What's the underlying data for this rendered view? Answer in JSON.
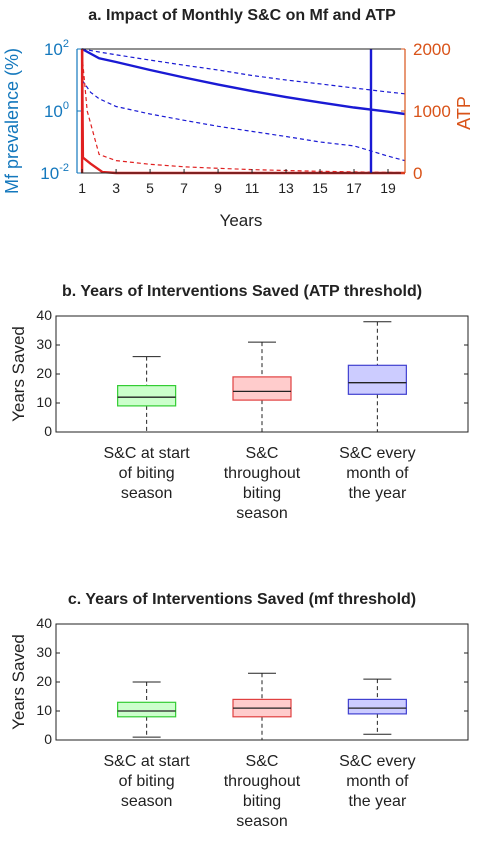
{
  "chart_data": [
    {
      "type": "line",
      "title": "a. Impact of Monthly S&C on Mf and ATP",
      "xlabel": "Years",
      "ylabel_left": "Mf prevalence (%)",
      "ylabel_right": "ATP",
      "xlim": [
        0.7,
        20
      ],
      "xticks": [
        1,
        3,
        5,
        7,
        9,
        11,
        13,
        15,
        17,
        19
      ],
      "xtick_labels": [
        "1",
        "3",
        "5",
        "7",
        "9",
        "11",
        "13",
        "15",
        "17",
        "19"
      ],
      "yscale_left": "log",
      "ylim_left": [
        0.01,
        100
      ],
      "yticks_left": [
        0.01,
        1,
        100
      ],
      "ytick_labels_left": [
        "10",
        "10",
        "10"
      ],
      "ytick_exponents_left": [
        "-2",
        "0",
        "2"
      ],
      "ylim_right": [
        0,
        2000
      ],
      "yticks_right": [
        0,
        1000,
        2000
      ],
      "ytick_labels_right": [
        "0",
        "1000",
        "2000"
      ],
      "colors": {
        "left_axis": "#1478bd",
        "right_axis": "#d95319",
        "mf": "#1a1ad4",
        "atp": "#e02020"
      },
      "series": [
        {
          "axis": "left",
          "style": "solid",
          "color": "#1a1ad4",
          "x": [
            1,
            2,
            3,
            5,
            7,
            9,
            11,
            13,
            15,
            17,
            19,
            20
          ],
          "y": [
            100,
            50,
            38,
            21,
            12,
            7.1,
            4.4,
            2.8,
            1.9,
            1.3,
            0.95,
            0.8
          ]
        },
        {
          "axis": "left",
          "style": "dashed",
          "color": "#1a1ad4",
          "x": [
            1,
            2,
            3,
            5,
            7,
            9,
            11,
            13,
            15,
            17,
            19,
            20
          ],
          "y": [
            100,
            80,
            65,
            44,
            30,
            21,
            14,
            10,
            7.5,
            5.5,
            4.1,
            3.6
          ]
        },
        {
          "axis": "left",
          "style": "dashed",
          "color": "#1a1ad4",
          "x": [
            1,
            1.5,
            2,
            3,
            5,
            7,
            9,
            11,
            13,
            15,
            17,
            19,
            20
          ],
          "y": [
            10,
            4,
            2.5,
            1.4,
            0.8,
            0.5,
            0.32,
            0.22,
            0.15,
            0.1,
            0.075,
            0.035,
            0.025
          ]
        },
        {
          "axis": "right",
          "style": "solid",
          "color": "#e02020",
          "x": [
            1,
            1.05,
            1.5,
            2.2,
            3,
            20
          ],
          "y": [
            2000,
            250,
            150,
            15,
            0,
            0
          ]
        },
        {
          "axis": "right",
          "style": "dashed",
          "color": "#e02020",
          "x": [
            1,
            1.3,
            2,
            3,
            5,
            7,
            9,
            11,
            13,
            15,
            17,
            19,
            20
          ],
          "y": [
            1900,
            1000,
            300,
            200,
            140,
            100,
            75,
            55,
            40,
            28,
            18,
            10,
            6
          ]
        },
        {
          "axis": "right",
          "style": "solid",
          "color": "#e02020",
          "x": [
            1,
            1
          ],
          "y": [
            0,
            2000
          ]
        },
        {
          "axis": "left",
          "style": "solid",
          "color": "#1a1ad4",
          "x": [
            18,
            18
          ],
          "y": [
            0.01,
            100
          ]
        }
      ]
    },
    {
      "type": "box",
      "title": "b. Years of Interventions Saved (ATP threshold)",
      "ylabel": "Years Saved",
      "ylim": [
        0,
        40
      ],
      "yticks": [
        0,
        10,
        20,
        30,
        40
      ],
      "ytick_labels": [
        "0",
        "10",
        "20",
        "30",
        "40"
      ],
      "categories": [
        [
          "S&C at start",
          "of biting",
          "season"
        ],
        [
          "S&C",
          "throughout",
          "biting",
          "season"
        ],
        [
          "S&C every",
          "month of",
          "the year"
        ]
      ],
      "boxes": [
        {
          "min": 0,
          "q1": 9,
          "median": 12,
          "q3": 16,
          "max": 26,
          "fill": "#ccffcc",
          "stroke": "#33cc33"
        },
        {
          "min": 0,
          "q1": 11,
          "median": 14,
          "q3": 19,
          "max": 31,
          "fill": "#ffcccc",
          "stroke": "#e04040"
        },
        {
          "min": 0,
          "q1": 13,
          "median": 17,
          "q3": 23,
          "max": 38,
          "fill": "#ccccff",
          "stroke": "#4040d0"
        }
      ]
    },
    {
      "type": "box",
      "title": "c. Years of Interventions Saved (mf threshold)",
      "ylabel": "Years Saved",
      "ylim": [
        0,
        40
      ],
      "yticks": [
        0,
        10,
        20,
        30,
        40
      ],
      "ytick_labels": [
        "0",
        "10",
        "20",
        "30",
        "40"
      ],
      "categories": [
        [
          "S&C at start",
          "of biting",
          "season"
        ],
        [
          "S&C",
          "throughout",
          "biting",
          "season"
        ],
        [
          "S&C every",
          "month of",
          "the year"
        ]
      ],
      "boxes": [
        {
          "min": 1,
          "q1": 8,
          "median": 10,
          "q3": 13,
          "max": 20,
          "fill": "#ccffcc",
          "stroke": "#33cc33"
        },
        {
          "min": 0,
          "q1": 8,
          "median": 11,
          "q3": 14,
          "max": 23,
          "fill": "#ffcccc",
          "stroke": "#e04040"
        },
        {
          "min": 2,
          "q1": 9,
          "median": 11,
          "q3": 14,
          "max": 21,
          "fill": "#ccccff",
          "stroke": "#4040d0"
        }
      ]
    }
  ]
}
